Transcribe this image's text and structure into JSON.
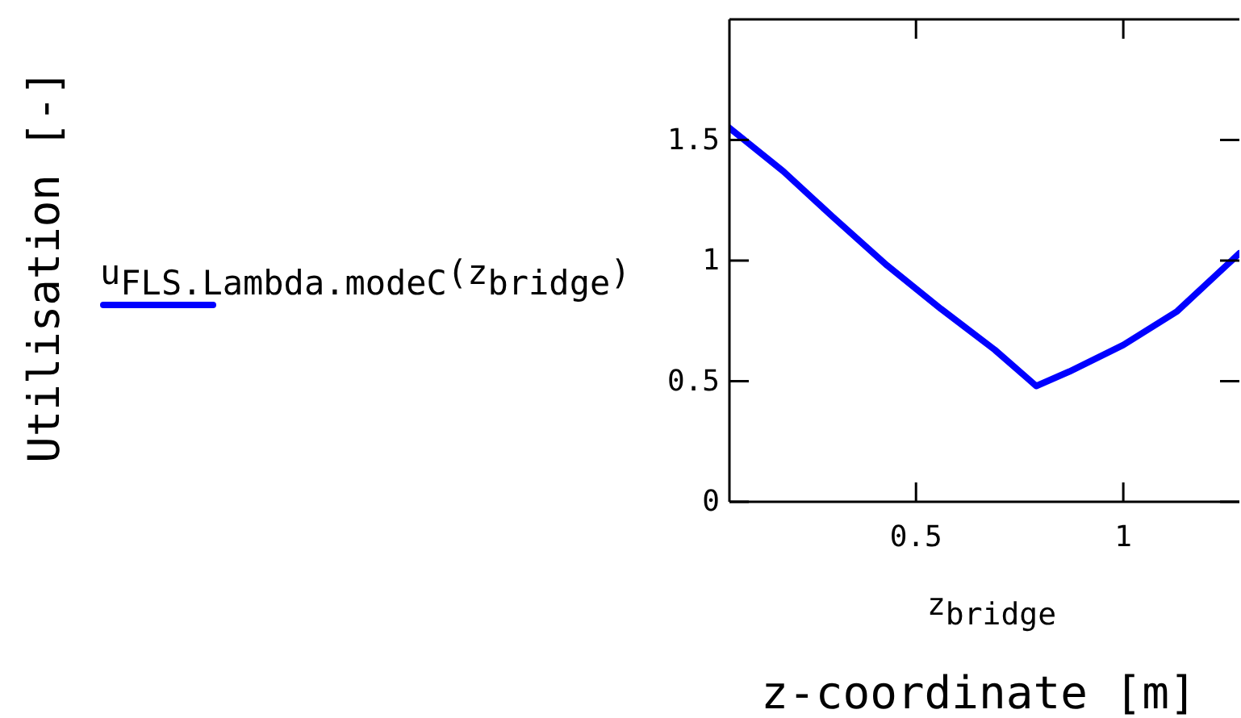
{
  "chart_data": {
    "type": "line",
    "xlabel": "z$_{bridge}$",
    "annotations": [
      "Utilisation [-]",
      "z-coordinate [m]"
    ],
    "x": [
      0.05,
      0.18,
      0.3,
      0.43,
      0.56,
      0.69,
      0.79,
      0.87,
      1.0,
      1.13,
      1.28
    ],
    "series": [
      {
        "name": "u$_{FLS.Lambda.modeC}$(z$_{bridge}$)",
        "color": "#0000ff",
        "values": [
          1.55,
          1.37,
          1.18,
          0.98,
          0.8,
          0.63,
          0.48,
          0.54,
          0.65,
          0.79,
          1.03
        ]
      }
    ],
    "xlim": [
      0.05,
      1.28
    ],
    "xticks": [
      0.5,
      1
    ],
    "ylim": [
      0,
      2
    ],
    "yticks": [
      0,
      0.5,
      1,
      1.5
    ],
    "legend": "left",
    "marker": "none",
    "line_style": "solid"
  }
}
